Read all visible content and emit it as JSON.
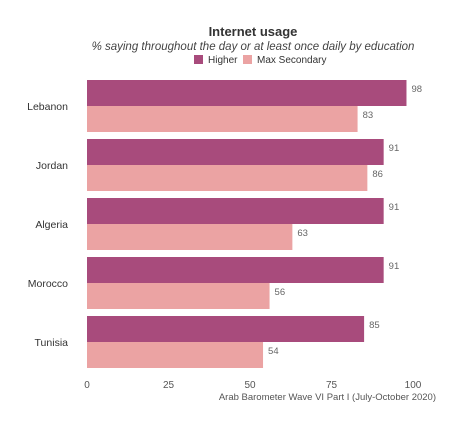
{
  "chart_data": {
    "type": "bar",
    "orientation": "horizontal",
    "title": "Internet usage",
    "subtitle": "% saying throughout the day or at least once daily by education",
    "categories": [
      "Lebanon",
      "Jordan",
      "Algeria",
      "Morocco",
      "Tunisia"
    ],
    "series": [
      {
        "name": "Higher",
        "color": "#a84b7c",
        "values": [
          98,
          91,
          91,
          91,
          85
        ]
      },
      {
        "name": "Max Secondary",
        "color": "#eba3a3",
        "values": [
          83,
          86,
          63,
          56,
          54
        ]
      }
    ],
    "xlim": [
      0,
      100
    ],
    "xticks": [
      0,
      25,
      50,
      75,
      100
    ],
    "legend_position": "top-center",
    "grid": false,
    "source": "Arab Barometer Wave VI Part I (July-October 2020)"
  }
}
